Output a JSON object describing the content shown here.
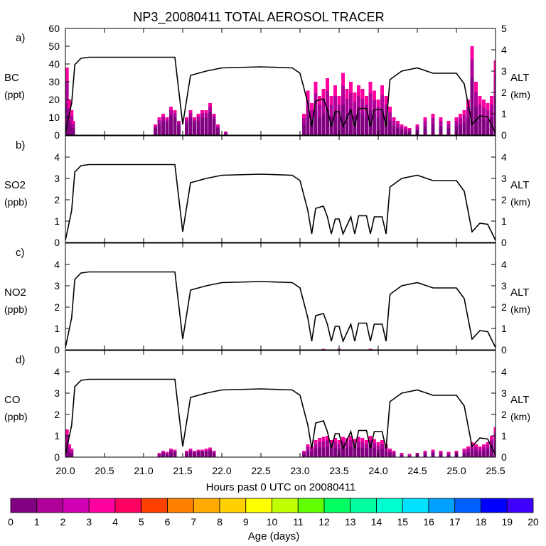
{
  "chart_data": {
    "type": "area",
    "title": "NP3_20080411 TOTAL AEROSOL TRACER",
    "xlabel": "Hours past 0 UTC on 20080411",
    "xlim": [
      20.0,
      25.5
    ],
    "xticks": [
      "20.0",
      "20.5",
      "21.0",
      "21.5",
      "22.0",
      "22.5",
      "23.0",
      "23.5",
      "24.0",
      "24.5",
      "25.0",
      "25.5"
    ],
    "altitude_km": {
      "name": "ALT (km)",
      "x": [
        20.0,
        20.08,
        20.12,
        20.2,
        20.3,
        21.4,
        21.5,
        21.6,
        21.8,
        22.0,
        22.5,
        22.9,
        23.0,
        23.1,
        23.15,
        23.2,
        23.3,
        23.35,
        23.4,
        23.45,
        23.5,
        23.55,
        23.65,
        23.7,
        23.75,
        23.85,
        23.9,
        23.95,
        24.05,
        24.1,
        24.15,
        24.3,
        24.5,
        24.7,
        25.0,
        25.1,
        25.2,
        25.3,
        25.4,
        25.5
      ],
      "y": [
        0.1,
        1.5,
        3.3,
        3.6,
        3.65,
        3.65,
        0.5,
        2.8,
        3.0,
        3.15,
        3.2,
        3.15,
        2.9,
        1.5,
        0.4,
        1.6,
        1.7,
        1.2,
        0.4,
        1.1,
        1.1,
        0.4,
        1.2,
        0.4,
        1.25,
        1.25,
        0.4,
        1.2,
        1.2,
        0.4,
        2.6,
        3.0,
        3.15,
        2.9,
        2.9,
        2.4,
        0.5,
        0.9,
        0.85,
        0.1
      ]
    },
    "panels": [
      {
        "label": "a)",
        "name": "BC",
        "units": "(ppt)",
        "ylim": [
          0,
          60
        ],
        "yticks": [
          "0",
          "10",
          "20",
          "30",
          "40",
          "50",
          "60"
        ],
        "alt_ticks": [
          "0",
          "1",
          "2",
          "3",
          "4",
          "5"
        ],
        "alt_max": 5,
        "bars": [
          {
            "x": 20.02,
            "total": 38,
            "young": 20
          },
          {
            "x": 20.05,
            "total": 20,
            "young": 12
          },
          {
            "x": 20.08,
            "total": 14,
            "young": 8
          },
          {
            "x": 20.1,
            "total": 8,
            "young": 4
          },
          {
            "x": 21.15,
            "total": 6,
            "young": 2
          },
          {
            "x": 21.2,
            "total": 10,
            "young": 4
          },
          {
            "x": 21.25,
            "total": 12,
            "young": 4
          },
          {
            "x": 21.3,
            "total": 10,
            "young": 3
          },
          {
            "x": 21.35,
            "total": 16,
            "young": 5
          },
          {
            "x": 21.4,
            "total": 14,
            "young": 4
          },
          {
            "x": 21.45,
            "total": 8,
            "young": 2
          },
          {
            "x": 21.55,
            "total": 10,
            "young": 3
          },
          {
            "x": 21.6,
            "total": 14,
            "young": 4
          },
          {
            "x": 21.65,
            "total": 10,
            "young": 3
          },
          {
            "x": 21.7,
            "total": 12,
            "young": 4
          },
          {
            "x": 21.75,
            "total": 14,
            "young": 4
          },
          {
            "x": 21.8,
            "total": 14,
            "young": 4
          },
          {
            "x": 21.85,
            "total": 18,
            "young": 5
          },
          {
            "x": 21.9,
            "total": 12,
            "young": 3
          },
          {
            "x": 21.95,
            "total": 6,
            "young": 2
          },
          {
            "x": 22.05,
            "total": 2,
            "young": 1
          },
          {
            "x": 23.05,
            "total": 12,
            "young": 6
          },
          {
            "x": 23.1,
            "total": 25,
            "young": 14
          },
          {
            "x": 23.15,
            "total": 18,
            "young": 10
          },
          {
            "x": 23.2,
            "total": 30,
            "young": 16
          },
          {
            "x": 23.25,
            "total": 22,
            "young": 12
          },
          {
            "x": 23.3,
            "total": 26,
            "young": 14
          },
          {
            "x": 23.35,
            "total": 32,
            "young": 18
          },
          {
            "x": 23.4,
            "total": 22,
            "young": 12
          },
          {
            "x": 23.45,
            "total": 28,
            "young": 15
          },
          {
            "x": 23.5,
            "total": 22,
            "young": 12
          },
          {
            "x": 23.55,
            "total": 35,
            "young": 18
          },
          {
            "x": 23.6,
            "total": 26,
            "young": 14
          },
          {
            "x": 23.65,
            "total": 30,
            "young": 16
          },
          {
            "x": 23.7,
            "total": 24,
            "young": 13
          },
          {
            "x": 23.75,
            "total": 28,
            "young": 15
          },
          {
            "x": 23.8,
            "total": 26,
            "young": 14
          },
          {
            "x": 23.85,
            "total": 22,
            "young": 12
          },
          {
            "x": 23.9,
            "total": 30,
            "young": 16
          },
          {
            "x": 23.95,
            "total": 25,
            "young": 13
          },
          {
            "x": 24.0,
            "total": 20,
            "young": 10
          },
          {
            "x": 24.05,
            "total": 28,
            "young": 14
          },
          {
            "x": 24.1,
            "total": 22,
            "young": 12
          },
          {
            "x": 24.15,
            "total": 16,
            "young": 8
          },
          {
            "x": 24.2,
            "total": 10,
            "young": 5
          },
          {
            "x": 24.25,
            "total": 8,
            "young": 4
          },
          {
            "x": 24.3,
            "total": 6,
            "young": 3
          },
          {
            "x": 24.35,
            "total": 5,
            "young": 3
          },
          {
            "x": 24.4,
            "total": 4,
            "young": 2
          },
          {
            "x": 24.5,
            "total": 6,
            "young": 3
          },
          {
            "x": 24.6,
            "total": 10,
            "young": 5
          },
          {
            "x": 24.7,
            "total": 12,
            "young": 6
          },
          {
            "x": 24.8,
            "total": 10,
            "young": 5
          },
          {
            "x": 24.9,
            "total": 8,
            "young": 4
          },
          {
            "x": 25.0,
            "total": 10,
            "young": 5
          },
          {
            "x": 25.05,
            "total": 12,
            "young": 6
          },
          {
            "x": 25.1,
            "total": 14,
            "young": 7
          },
          {
            "x": 25.15,
            "total": 20,
            "young": 10
          },
          {
            "x": 25.2,
            "total": 50,
            "young": 18
          },
          {
            "x": 25.25,
            "total": 30,
            "young": 14
          },
          {
            "x": 25.3,
            "total": 22,
            "young": 12
          },
          {
            "x": 25.35,
            "total": 20,
            "young": 11
          },
          {
            "x": 25.4,
            "total": 18,
            "young": 10
          },
          {
            "x": 25.45,
            "total": 22,
            "young": 12
          },
          {
            "x": 25.5,
            "total": 42,
            "young": 20
          }
        ]
      },
      {
        "label": "b)",
        "name": "SO2",
        "units": "(ppb)",
        "ylim": [
          0,
          5
        ],
        "yticks": [
          "0",
          "1",
          "2",
          "3",
          "4"
        ],
        "alt_ticks": [
          "0",
          "1",
          "2",
          "3",
          "4"
        ],
        "alt_max": 5,
        "bars": []
      },
      {
        "label": "c)",
        "name": "NO2",
        "units": "(ppb)",
        "ylim": [
          0,
          5
        ],
        "yticks": [
          "0",
          "1",
          "2",
          "3",
          "4"
        ],
        "alt_ticks": [
          "0",
          "1",
          "2",
          "3",
          "4"
        ],
        "alt_max": 5,
        "bars": [
          {
            "x": 23.3,
            "total": 0.05,
            "young": 0.03
          },
          {
            "x": 23.5,
            "total": 0.05,
            "young": 0.03
          },
          {
            "x": 23.9,
            "total": 0.05,
            "young": 0.03
          }
        ]
      },
      {
        "label": "d)",
        "name": "CO",
        "units": "(ppb)",
        "ylim": [
          0,
          5
        ],
        "yticks": [
          "0",
          "1",
          "2",
          "3",
          "4"
        ],
        "alt_ticks": [
          "0",
          "1",
          "2",
          "3",
          "4"
        ],
        "alt_max": 5,
        "bars": [
          {
            "x": 20.02,
            "total": 1.3,
            "young": 0.6
          },
          {
            "x": 20.05,
            "total": 0.6,
            "young": 0.3
          },
          {
            "x": 20.08,
            "total": 0.4,
            "young": 0.2
          },
          {
            "x": 21.2,
            "total": 0.2,
            "young": 0.1
          },
          {
            "x": 21.25,
            "total": 0.3,
            "young": 0.1
          },
          {
            "x": 21.3,
            "total": 0.25,
            "young": 0.1
          },
          {
            "x": 21.35,
            "total": 0.4,
            "young": 0.15
          },
          {
            "x": 21.4,
            "total": 0.35,
            "young": 0.1
          },
          {
            "x": 21.55,
            "total": 0.3,
            "young": 0.1
          },
          {
            "x": 21.6,
            "total": 0.4,
            "young": 0.15
          },
          {
            "x": 21.65,
            "total": 0.3,
            "young": 0.1
          },
          {
            "x": 21.7,
            "total": 0.35,
            "young": 0.1
          },
          {
            "x": 21.75,
            "total": 0.35,
            "young": 0.1
          },
          {
            "x": 21.8,
            "total": 0.4,
            "young": 0.15
          },
          {
            "x": 21.85,
            "total": 0.45,
            "young": 0.15
          },
          {
            "x": 21.9,
            "total": 0.3,
            "young": 0.1
          },
          {
            "x": 23.05,
            "total": 0.3,
            "young": 0.15
          },
          {
            "x": 23.1,
            "total": 0.6,
            "young": 0.3
          },
          {
            "x": 23.15,
            "total": 0.5,
            "young": 0.25
          },
          {
            "x": 23.2,
            "total": 0.8,
            "young": 0.4
          },
          {
            "x": 23.25,
            "total": 0.9,
            "young": 0.45
          },
          {
            "x": 23.3,
            "total": 0.95,
            "young": 0.5
          },
          {
            "x": 23.35,
            "total": 1.0,
            "young": 0.5
          },
          {
            "x": 23.4,
            "total": 0.8,
            "young": 0.4
          },
          {
            "x": 23.45,
            "total": 0.9,
            "young": 0.45
          },
          {
            "x": 23.5,
            "total": 0.8,
            "young": 0.4
          },
          {
            "x": 23.55,
            "total": 0.95,
            "young": 0.5
          },
          {
            "x": 23.6,
            "total": 0.9,
            "young": 0.45
          },
          {
            "x": 23.65,
            "total": 1.0,
            "young": 0.5
          },
          {
            "x": 23.7,
            "total": 0.85,
            "young": 0.4
          },
          {
            "x": 23.75,
            "total": 0.95,
            "young": 0.5
          },
          {
            "x": 23.8,
            "total": 0.9,
            "young": 0.45
          },
          {
            "x": 23.85,
            "total": 0.8,
            "young": 0.4
          },
          {
            "x": 23.9,
            "total": 1.0,
            "young": 0.5
          },
          {
            "x": 23.95,
            "total": 0.85,
            "young": 0.4
          },
          {
            "x": 24.0,
            "total": 0.7,
            "young": 0.35
          },
          {
            "x": 24.05,
            "total": 0.8,
            "young": 0.4
          },
          {
            "x": 24.1,
            "total": 0.6,
            "young": 0.3
          },
          {
            "x": 24.15,
            "total": 0.4,
            "young": 0.2
          },
          {
            "x": 24.2,
            "total": 0.3,
            "young": 0.15
          },
          {
            "x": 24.3,
            "total": 0.2,
            "young": 0.1
          },
          {
            "x": 24.4,
            "total": 0.15,
            "young": 0.08
          },
          {
            "x": 24.5,
            "total": 0.2,
            "young": 0.1
          },
          {
            "x": 24.6,
            "total": 0.3,
            "young": 0.15
          },
          {
            "x": 24.7,
            "total": 0.35,
            "young": 0.15
          },
          {
            "x": 24.8,
            "total": 0.3,
            "young": 0.15
          },
          {
            "x": 24.9,
            "total": 0.25,
            "young": 0.12
          },
          {
            "x": 25.0,
            "total": 0.3,
            "young": 0.15
          },
          {
            "x": 25.1,
            "total": 0.4,
            "young": 0.2
          },
          {
            "x": 25.15,
            "total": 0.5,
            "young": 0.25
          },
          {
            "x": 25.2,
            "total": 0.7,
            "young": 0.3
          },
          {
            "x": 25.25,
            "total": 0.6,
            "young": 0.3
          },
          {
            "x": 25.3,
            "total": 0.5,
            "young": 0.25
          },
          {
            "x": 25.35,
            "total": 0.6,
            "young": 0.3
          },
          {
            "x": 25.4,
            "total": 0.7,
            "young": 0.3
          },
          {
            "x": 25.45,
            "total": 1.0,
            "young": 0.4
          },
          {
            "x": 25.5,
            "total": 1.4,
            "young": 0.6
          }
        ]
      }
    ],
    "colorbar": {
      "label": "Age (days)",
      "ticks": [
        "0",
        "1",
        "2",
        "3",
        "4",
        "5",
        "6",
        "7",
        "8",
        "9",
        "10",
        "11",
        "12",
        "13",
        "14",
        "15",
        "16",
        "17",
        "18",
        "19",
        "20"
      ],
      "colors": [
        "#800080",
        "#b0009a",
        "#d100b4",
        "#ff00a0",
        "#ff0060",
        "#ff4000",
        "#ff8000",
        "#ffaa00",
        "#ffd000",
        "#ffff00",
        "#c0ff00",
        "#60ff00",
        "#00ff60",
        "#00ffa0",
        "#00ffd0",
        "#00e0ff",
        "#00a0ff",
        "#0060ff",
        "#0000ff",
        "#4000ff"
      ]
    }
  }
}
